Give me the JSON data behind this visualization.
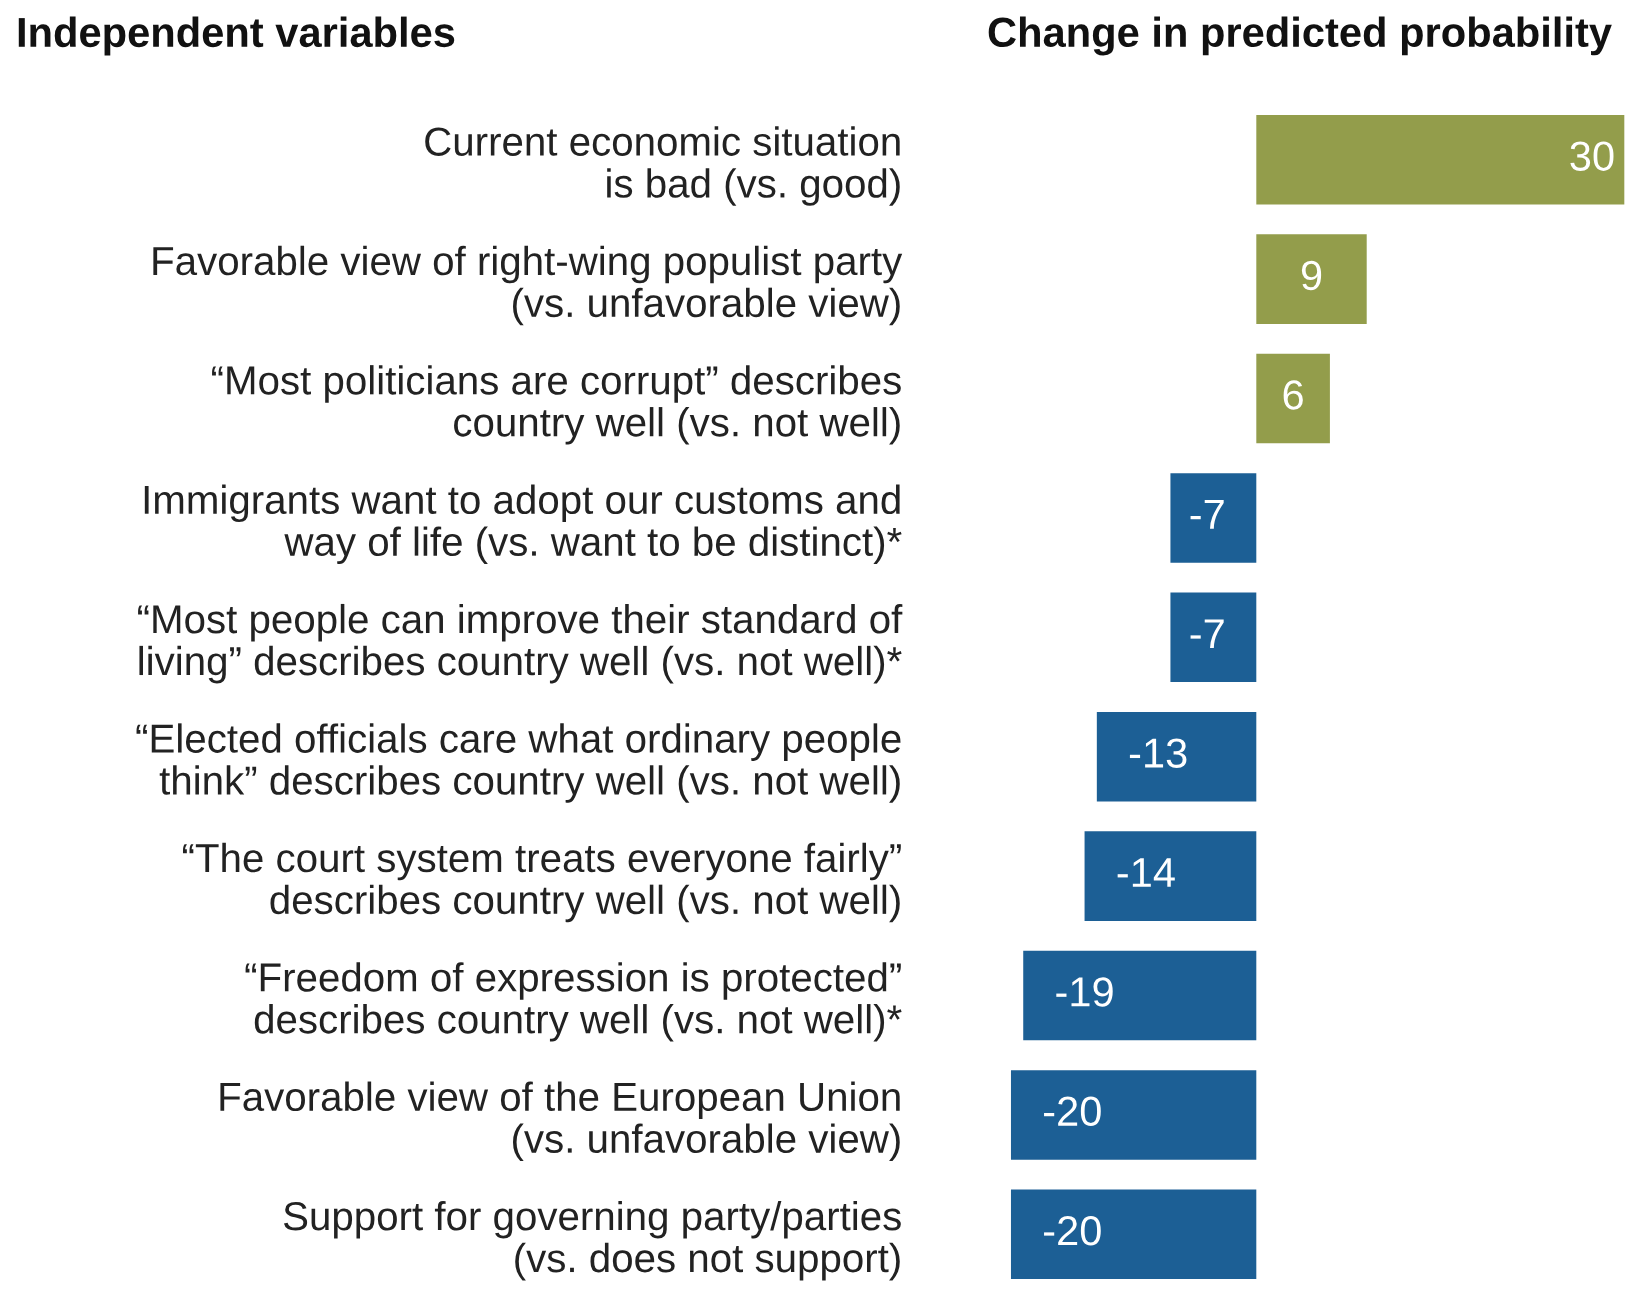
{
  "chart_data": {
    "type": "bar",
    "orientation": "horizontal",
    "ylabel": "Independent variables",
    "xlabel": "Change in predicted probability",
    "categories": [
      "Current economic situation\nis bad (vs. good)",
      "Favorable view of right-wing populist party\n(vs. unfavorable view)",
      "“Most politicians are corrupt” describes\ncountry well (vs. not well)",
      "Immigrants want to adopt our customs and\nway of life (vs. want to be distinct)*",
      "“Most people can improve their standard of\nliving” describes country well (vs. not well)*",
      "“Elected officials care what ordinary people\nthink” describes country well (vs. not well)",
      "“The court system treats everyone fairly”\ndescribes country well (vs. not well)",
      "“Freedom of expression is protected”\ndescribes country well (vs. not well)*",
      "Favorable view of the European Union\n(vs. unfavorable view)",
      "Support for governing party/parties\n(vs. does not support)"
    ],
    "values": [
      30,
      9,
      6,
      -7,
      -7,
      -13,
      -14,
      -19,
      -20,
      -20
    ],
    "colors": [
      "#939d4b",
      "#939d4b",
      "#939d4b",
      "#1c5f95",
      "#1c5f95",
      "#1c5f95",
      "#1c5f95",
      "#1c5f95",
      "#1c5f95",
      "#1c5f95"
    ],
    "data_labels": true,
    "grid": false,
    "legend": false
  }
}
